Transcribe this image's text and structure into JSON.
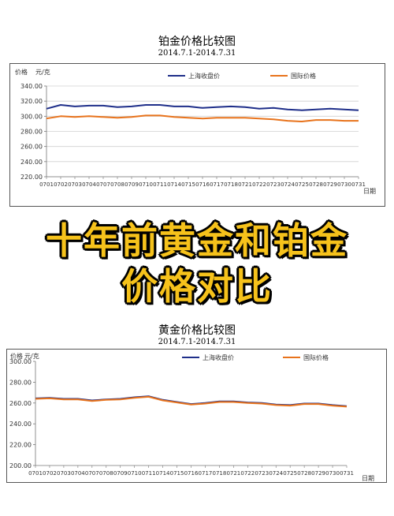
{
  "banner": {
    "line1": "十年前黄金和铂金",
    "line2": "价格对比"
  },
  "chart_data": [
    {
      "type": "line",
      "title": "铂金价格比较图",
      "subtitle": "2014.7.1-2014.7.31",
      "ylabel": "价格",
      "yunit": "元/克",
      "xlabel": "日期",
      "ylim": [
        220,
        340
      ],
      "yticks": [
        "220.00",
        "240.00",
        "260.00",
        "280.00",
        "300.00",
        "320.00",
        "340.00"
      ],
      "grid": true,
      "legend": "top",
      "categories": [
        "0701",
        "0702",
        "0703",
        "0704",
        "0707",
        "0708",
        "0709",
        "0710",
        "0711",
        "0714",
        "0715",
        "0716",
        "0717",
        "0718",
        "0721",
        "0722",
        "0723",
        "0724",
        "0725",
        "0728",
        "0729",
        "0730",
        "0731"
      ],
      "series": [
        {
          "name": "上海收盘价",
          "color": "#1f2f8a",
          "values": [
            310,
            315,
            313,
            314,
            314,
            312,
            313,
            315,
            315,
            313,
            313,
            311,
            312,
            313,
            312,
            310,
            311,
            309,
            308,
            309,
            310,
            309,
            308
          ]
        },
        {
          "name": "国际价格",
          "color": "#e8731c",
          "values": [
            297,
            300,
            299,
            300,
            299,
            298,
            299,
            301,
            301,
            299,
            298,
            297,
            298,
            298,
            298,
            297,
            296,
            294,
            293,
            295,
            295,
            294,
            294
          ]
        }
      ]
    },
    {
      "type": "line",
      "title": "黄金价格比较图",
      "subtitle": "2014.7.1-2014.7.31",
      "ylabel": "价格",
      "yunit": "元/克",
      "xlabel": "日期",
      "ylim": [
        200,
        300
      ],
      "yticks": [
        "200.00",
        "220.00",
        "240.00",
        "260.00",
        "280.00",
        "300.00"
      ],
      "grid": false,
      "legend": "top",
      "categories": [
        "0701",
        "0702",
        "0703",
        "0704",
        "0707",
        "0708",
        "0709",
        "0710",
        "0711",
        "0714",
        "0715",
        "0716",
        "0717",
        "0718",
        "0721",
        "0722",
        "0723",
        "0724",
        "0725",
        "0728",
        "0729",
        "0730",
        "0731"
      ],
      "series": [
        {
          "name": "上海收盘价",
          "color": "#1f2f8a",
          "values": [
            264.5,
            265,
            264,
            264,
            262.5,
            263.5,
            264,
            265.5,
            266.5,
            263,
            261,
            259,
            260,
            261.5,
            261.5,
            260.5,
            260,
            258.5,
            258,
            259.5,
            259.5,
            258,
            257
          ]
        },
        {
          "name": "国际价格",
          "color": "#e8731c",
          "values": [
            264,
            264.5,
            263.5,
            263.5,
            262,
            263,
            263.5,
            265,
            266,
            262.5,
            260.5,
            258.5,
            259.5,
            261,
            261,
            260,
            259.5,
            258,
            257.5,
            259,
            259,
            257.5,
            256.5
          ]
        }
      ]
    }
  ]
}
